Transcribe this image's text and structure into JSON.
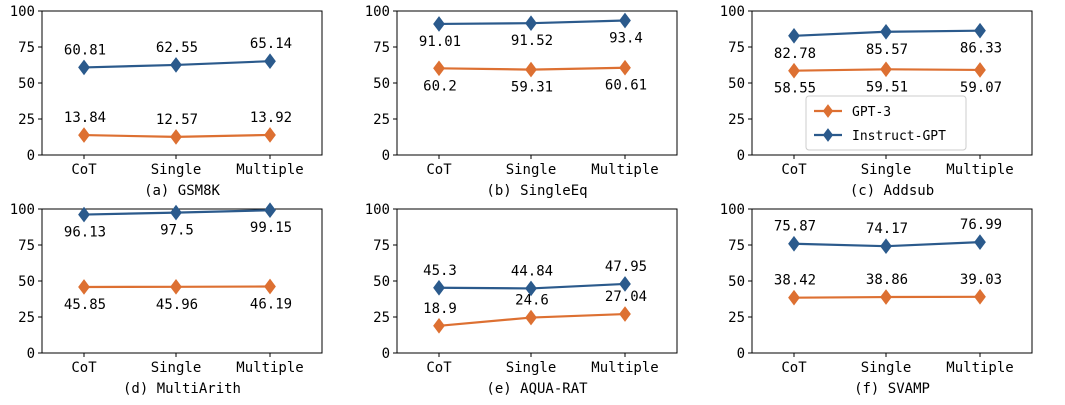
{
  "colors": {
    "gpt3": "#dd7032",
    "instruct": "#2b5a8c",
    "axis": "#000000"
  },
  "chart_data": [
    {
      "type": "line",
      "caption": "(a) GSM8K",
      "categories": [
        "CoT",
        "Single",
        "Multiple"
      ],
      "ylim": [
        0,
        100
      ],
      "yticks": [
        0,
        25,
        50,
        75,
        100
      ],
      "series": [
        {
          "name": "GPT-3",
          "values": [
            13.84,
            12.57,
            13.92
          ],
          "labels": [
            "13.84",
            "12.57",
            "13.92"
          ],
          "label_pos": "above"
        },
        {
          "name": "Instruct-GPT",
          "values": [
            60.81,
            62.55,
            65.14
          ],
          "labels": [
            "60.81",
            "62.55",
            "65.14"
          ],
          "label_pos": "above"
        }
      ]
    },
    {
      "type": "line",
      "caption": "(b) SingleEq",
      "categories": [
        "CoT",
        "Single",
        "Multiple"
      ],
      "ylim": [
        0,
        100
      ],
      "yticks": [
        0,
        25,
        50,
        75,
        100
      ],
      "series": [
        {
          "name": "GPT-3",
          "values": [
            60.2,
            59.31,
            60.61
          ],
          "labels": [
            "60.2",
            "59.31",
            "60.61"
          ],
          "label_pos": "below"
        },
        {
          "name": "Instruct-GPT",
          "values": [
            91.01,
            91.52,
            93.4
          ],
          "labels": [
            "91.01",
            "91.52",
            "93.4"
          ],
          "label_pos": "below"
        }
      ]
    },
    {
      "type": "line",
      "caption": "(c) Addsub",
      "categories": [
        "CoT",
        "Single",
        "Multiple"
      ],
      "ylim": [
        0,
        100
      ],
      "yticks": [
        0,
        25,
        50,
        75,
        100
      ],
      "legend": {
        "position": "lower-left"
      },
      "series": [
        {
          "name": "GPT-3",
          "values": [
            58.55,
            59.51,
            59.07
          ],
          "labels": [
            "58.55",
            "59.51",
            "59.07"
          ],
          "label_pos": "below"
        },
        {
          "name": "Instruct-GPT",
          "values": [
            82.78,
            85.57,
            86.33
          ],
          "labels": [
            "82.78",
            "85.57",
            "86.33"
          ],
          "label_pos": "below"
        }
      ]
    },
    {
      "type": "line",
      "caption": "(d) MultiArith",
      "categories": [
        "CoT",
        "Single",
        "Multiple"
      ],
      "ylim": [
        0,
        100
      ],
      "yticks": [
        0,
        25,
        50,
        75,
        100
      ],
      "series": [
        {
          "name": "GPT-3",
          "values": [
            45.85,
            45.96,
            46.19
          ],
          "labels": [
            "45.85",
            "45.96",
            "46.19"
          ],
          "label_pos": "below"
        },
        {
          "name": "Instruct-GPT",
          "values": [
            96.13,
            97.5,
            99.15
          ],
          "labels": [
            "96.13",
            "97.5",
            "99.15"
          ],
          "label_pos": "below"
        }
      ]
    },
    {
      "type": "line",
      "caption": "(e) AQUA-RAT",
      "categories": [
        "CoT",
        "Single",
        "Multiple"
      ],
      "ylim": [
        0,
        100
      ],
      "yticks": [
        0,
        25,
        50,
        75,
        100
      ],
      "series": [
        {
          "name": "GPT-3",
          "values": [
            18.9,
            24.6,
            27.04
          ],
          "labels": [
            "18.9",
            "24.6",
            "27.04"
          ],
          "label_pos": "above"
        },
        {
          "name": "Instruct-GPT",
          "values": [
            45.3,
            44.84,
            47.95
          ],
          "labels": [
            "45.3",
            "44.84",
            "47.95"
          ],
          "label_pos": "above"
        }
      ]
    },
    {
      "type": "line",
      "caption": "(f) SVAMP",
      "categories": [
        "CoT",
        "Single",
        "Multiple"
      ],
      "ylim": [
        0,
        100
      ],
      "yticks": [
        0,
        25,
        50,
        75,
        100
      ],
      "series": [
        {
          "name": "GPT-3",
          "values": [
            38.42,
            38.86,
            39.03
          ],
          "labels": [
            "38.42",
            "38.86",
            "39.03"
          ],
          "label_pos": "above"
        },
        {
          "name": "Instruct-GPT",
          "values": [
            75.87,
            74.17,
            76.99
          ],
          "labels": [
            "75.87",
            "74.17",
            "76.99"
          ],
          "label_pos": "above"
        }
      ]
    }
  ]
}
